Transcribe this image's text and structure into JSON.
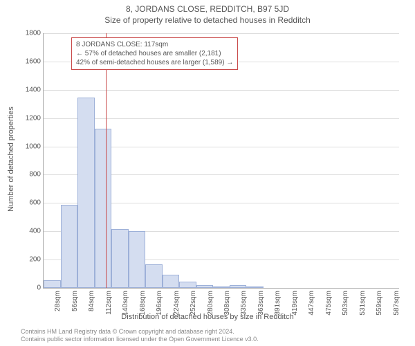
{
  "titles": {
    "main": "8, JORDANS CLOSE, REDDITCH, B97 5JD",
    "sub": "Size of property relative to detached houses in Redditch"
  },
  "chart": {
    "type": "histogram",
    "y_axis": {
      "label": "Number of detached properties",
      "min": 0,
      "max": 1800,
      "tick_step": 200,
      "ticks": [
        0,
        200,
        400,
        600,
        800,
        1000,
        1200,
        1400,
        1600,
        1800
      ]
    },
    "x_axis": {
      "label": "Distribution of detached houses by size in Redditch",
      "tick_labels": [
        "28sqm",
        "56sqm",
        "84sqm",
        "112sqm",
        "140sqm",
        "168sqm",
        "196sqm",
        "224sqm",
        "252sqm",
        "280sqm",
        "308sqm",
        "335sqm",
        "363sqm",
        "391sqm",
        "419sqm",
        "447sqm",
        "475sqm",
        "503sqm",
        "531sqm",
        "559sqm",
        "587sqm"
      ],
      "bin_width": 28,
      "min": 14,
      "max": 601
    },
    "bars": {
      "fill_color": "#d4ddf0",
      "border_color": "#9db0d8",
      "values": [
        55,
        585,
        1345,
        1125,
        415,
        400,
        165,
        95,
        45,
        20,
        5,
        18,
        5,
        0,
        0,
        0,
        0,
        0,
        0,
        0,
        0
      ]
    },
    "reference_line": {
      "value": 117,
      "color": "#c94a4a"
    },
    "annotation": {
      "lines": [
        "8 JORDANS CLOSE: 117sqm",
        "← 57% of detached houses are smaller (2,181)",
        "42% of semi-detached houses are larger (1,589) →"
      ],
      "border_color": "#c94a4a"
    },
    "grid_color": "#dddddd",
    "background_color": "#ffffff"
  },
  "footer": {
    "line1": "Contains HM Land Registry data © Crown copyright and database right 2024.",
    "line2": "Contains public sector information licensed under the Open Government Licence v3.0."
  }
}
